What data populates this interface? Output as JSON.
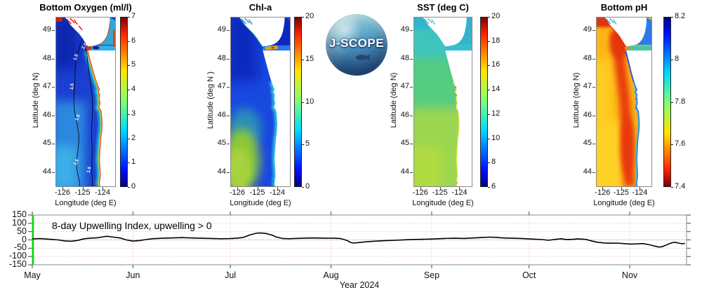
{
  "logo": {
    "text": "J-SCOPE"
  },
  "panels": [
    {
      "title": "Bottom Oxygen (ml/l)",
      "ylabel": "Latitude (deg N)",
      "xlabel": "Longitude (deg E)",
      "lat_ticks": [
        "49",
        "48",
        "47",
        "46",
        "45",
        "44"
      ],
      "lon_ticks": [
        "-126",
        "-125",
        "-124"
      ],
      "colorbar_ticks": [
        "7",
        "6",
        "5",
        "4",
        "3",
        "2",
        "1",
        "0"
      ],
      "contour_label": "1.5"
    },
    {
      "title": "Chl-a",
      "ylabel": "Latitude (deg N )",
      "xlabel": "Longitude (deg E)",
      "lat_ticks": [
        "49",
        "48",
        "47",
        "46",
        "45",
        "44"
      ],
      "lon_ticks": [
        "-126",
        "-125",
        "-124"
      ],
      "colorbar_ticks": [
        "20",
        "15",
        "10",
        "5",
        "0"
      ]
    },
    {
      "title": "SST (deg C)",
      "ylabel": "Latitude (deg N)",
      "xlabel": "Longitude (deg E)",
      "lat_ticks": [
        "49",
        "48",
        "47",
        "46",
        "45",
        "44"
      ],
      "lon_ticks": [
        "-126",
        "-125",
        "-124"
      ],
      "colorbar_ticks": [
        "20",
        "18",
        "16",
        "14",
        "12",
        "10",
        "8",
        "6"
      ]
    },
    {
      "title": "Bottom pH",
      "ylabel": "Latitude (deg N)",
      "xlabel": "Longitude (deg E)",
      "lat_ticks": [
        "49",
        "48",
        "47",
        "46",
        "45",
        "44"
      ],
      "lon_ticks": [
        "-126",
        "-125",
        "-124"
      ],
      "colorbar_ticks": [
        "8.2",
        "8",
        "7.8",
        "7.6",
        "7.4"
      ]
    }
  ],
  "timeseries": {
    "annotation": "8-day Upwelling Index, upwelling > 0",
    "xlabel": "Year 2024",
    "month_labels": [
      "May",
      "Jun",
      "Jul",
      "Aug",
      "Sep",
      "Oct",
      "Nov"
    ],
    "ytick_labels": [
      "150",
      "100",
      "50",
      "0",
      "-50",
      "-100",
      "-150"
    ]
  },
  "chart_data": [
    {
      "type": "heatmap",
      "title": "Bottom Oxygen (ml/l)",
      "xlabel": "Longitude (deg E)",
      "ylabel": "Latitude (deg N)",
      "xticks": [
        -126,
        -125,
        -124
      ],
      "yticks": [
        49,
        48,
        47,
        46,
        45,
        44
      ],
      "xlim": [
        -126.35,
        -123.3
      ],
      "ylim": [
        43.45,
        49.5
      ],
      "colormap": "jet",
      "colorbar_range": [
        0,
        7
      ],
      "colorbar_ticks": [
        0,
        1,
        2,
        3,
        4,
        5,
        6,
        7
      ],
      "contour_levels": [
        1.5
      ],
      "summary": "Deep-blue low oxygen (~1 ml/l) offshore bounded by black 1.5 ml/l contours; cyan-to-yellow shelf band and red (>5.5) fringe at the coast, red water in Strait of Juan de Fuca entrance and Vancouver Island inlets."
    },
    {
      "type": "heatmap",
      "title": "Chl-a",
      "xlabel": "Longitude (deg E)",
      "ylabel": "Latitude (deg N)",
      "xticks": [
        -126,
        -125,
        -124
      ],
      "yticks": [
        49,
        48,
        47,
        46,
        45,
        44
      ],
      "xlim": [
        -126.35,
        -123.3
      ],
      "ylim": [
        43.45,
        49.5
      ],
      "colormap": "jet",
      "colorbar_range": [
        0,
        20
      ],
      "colorbar_ticks": [
        0,
        5,
        10,
        15,
        20
      ],
      "summary": "Blue low chlorophyll (~1-3) offshore, cyan mid-shelf (~5), yellow-green patch (~9-10) in the southwest, orange-red bloom streak (~15-18) inside the Strait of Juan de Fuca, dark blue in the Strait of Georgia."
    },
    {
      "type": "heatmap",
      "title": "SST (deg C)",
      "xlabel": "Longitude (deg E)",
      "ylabel": "Latitude (deg N)",
      "xticks": [
        -126,
        -125,
        -124
      ],
      "yticks": [
        49,
        48,
        47,
        46,
        45,
        44
      ],
      "xlim": [
        -126.35,
        -123.3
      ],
      "ylim": [
        43.45,
        49.5
      ],
      "colormap": "jet",
      "colorbar_range": [
        6,
        20
      ],
      "colorbar_ticks": [
        6,
        8,
        10,
        12,
        14,
        16,
        18,
        20
      ],
      "summary": "Sea-surface temperature mostly 12-14 C: cyan (~11-12) in the north and straits, green (~13) mid-domain, yellow-green (~14) in the south, tiny orange-red spots (~16-17) in coastal bays near 46.4-47 N."
    },
    {
      "type": "heatmap",
      "title": "Bottom pH",
      "xlabel": "Longitude (deg E)",
      "ylabel": "Latitude (deg N)",
      "xticks": [
        -126,
        -125,
        -124
      ],
      "yticks": [
        49,
        48,
        47,
        46,
        45,
        44
      ],
      "xlim": [
        -126.35,
        -123.3
      ],
      "ylim": [
        43.45,
        49.5
      ],
      "colormap": "jet-reversed",
      "colorbar_range": [
        7.4,
        8.2
      ],
      "colorbar_ticks": [
        8.2,
        8.0,
        7.8,
        7.6,
        7.4
      ],
      "summary": "Low bottom pH offshore: yellow (~7.65) far offshore, broad red band (~7.5-7.55) over the shelf, narrow blue-cyan strip (~7.9-8.0) right along the coast and in the straits."
    },
    {
      "type": "line",
      "title": "8-day Upwelling Index, upwelling > 0",
      "xlabel": "Year 2024",
      "x_unit": "days since May 1, 2024",
      "xtick_labels": [
        "May",
        "Jun",
        "Jul",
        "Aug",
        "Sep",
        "Oct",
        "Nov"
      ],
      "month_start_days": [
        0,
        31,
        61,
        92,
        123,
        153,
        184
      ],
      "x_range_days": [
        0,
        201
      ],
      "ylim": [
        -150,
        150
      ],
      "yticks": [
        150,
        100,
        50,
        0,
        -50,
        -100,
        -150
      ],
      "grid": "pink dotted horizontal every 50 and vertical at month ticks; gray dotted zero line",
      "start_line": {
        "x_day": 0,
        "color": "#00dd00"
      },
      "legend_position": "none",
      "series": [
        {
          "name": "upwelling index",
          "color": "#000000",
          "points": [
            [
              0,
              6
            ],
            [
              2,
              8
            ],
            [
              4,
              6
            ],
            [
              6,
              3
            ],
            [
              8,
              0
            ],
            [
              10,
              -6
            ],
            [
              12,
              -8
            ],
            [
              14,
              -3
            ],
            [
              16,
              7
            ],
            [
              18,
              11
            ],
            [
              20,
              13
            ],
            [
              22,
              19
            ],
            [
              23,
              22
            ],
            [
              25,
              17
            ],
            [
              27,
              12
            ],
            [
              28,
              6
            ],
            [
              29,
              0
            ],
            [
              31,
              -7
            ],
            [
              33,
              -4
            ],
            [
              35,
              2
            ],
            [
              37,
              7
            ],
            [
              40,
              10
            ],
            [
              43,
              12
            ],
            [
              46,
              14
            ],
            [
              49,
              12
            ],
            [
              52,
              10
            ],
            [
              55,
              9
            ],
            [
              58,
              7
            ],
            [
              61,
              8
            ],
            [
              63,
              10
            ],
            [
              65,
              15
            ],
            [
              67,
              30
            ],
            [
              69,
              40
            ],
            [
              70,
              42
            ],
            [
              72,
              39
            ],
            [
              74,
              28
            ],
            [
              75,
              18
            ],
            [
              77,
              9
            ],
            [
              79,
              7
            ],
            [
              81,
              9
            ],
            [
              84,
              11
            ],
            [
              87,
              12
            ],
            [
              90,
              10
            ],
            [
              93,
              10
            ],
            [
              95,
              8
            ],
            [
              97,
              -4
            ],
            [
              98,
              -15
            ],
            [
              99,
              -19
            ],
            [
              101,
              -15
            ],
            [
              103,
              -11
            ],
            [
              106,
              -7
            ],
            [
              109,
              -4
            ],
            [
              112,
              -2
            ],
            [
              115,
              1
            ],
            [
              118,
              3
            ],
            [
              121,
              4
            ],
            [
              124,
              6
            ],
            [
              127,
              9
            ],
            [
              130,
              10
            ],
            [
              133,
              9
            ],
            [
              136,
              12
            ],
            [
              139,
              15
            ],
            [
              141,
              17
            ],
            [
              143,
              15
            ],
            [
              145,
              12
            ],
            [
              148,
              10
            ],
            [
              151,
              8
            ],
            [
              153,
              6
            ],
            [
              155,
              4
            ],
            [
              157,
              2
            ],
            [
              159,
              -2
            ],
            [
              161,
              3
            ],
            [
              163,
              7
            ],
            [
              164,
              3
            ],
            [
              166,
              3
            ],
            [
              168,
              6
            ],
            [
              170,
              4
            ],
            [
              171,
              1
            ],
            [
              172,
              -5
            ],
            [
              174,
              -14
            ],
            [
              176,
              -18
            ],
            [
              178,
              -20
            ],
            [
              180,
              -19
            ],
            [
              182,
              -22
            ],
            [
              184,
              -25
            ],
            [
              186,
              -24
            ],
            [
              188,
              -22
            ],
            [
              190,
              -29
            ],
            [
              192,
              -39
            ],
            [
              193,
              -43
            ],
            [
              194,
              -41
            ],
            [
              195,
              -33
            ],
            [
              196,
              -24
            ],
            [
              197,
              -17
            ],
            [
              198,
              -14
            ],
            [
              199,
              -19
            ],
            [
              200,
              -23
            ],
            [
              201,
              -21
            ]
          ]
        }
      ]
    }
  ]
}
